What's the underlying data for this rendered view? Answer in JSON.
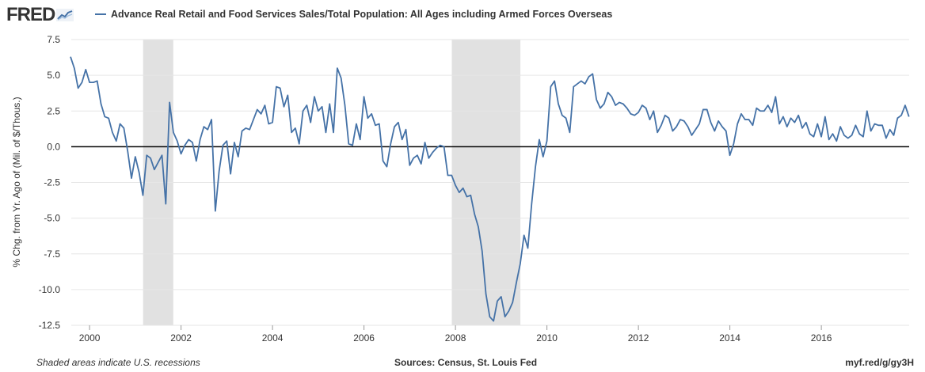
{
  "header": {
    "logo_text": "FRED",
    "logo_icon": "trend-line-icon",
    "legend_label": "Advance Real Retail and Food Services Sales/Total Population: All Ages including Armed Forces Overseas"
  },
  "colors": {
    "series": "#4572a7",
    "recession": "#e1e1e1",
    "grid": "#e6e6e6",
    "zero_line": "#000000"
  },
  "footer": {
    "left": "Shaded areas indicate U.S. recessions",
    "center": "Sources: Census, St. Louis Fed",
    "right": "myf.red/g/gy3H"
  },
  "chart_data": {
    "type": "line",
    "title": "",
    "xlabel": "",
    "ylabel": "% Chg. from Yr. Ago of (Mil. of $/Thous.)",
    "xlim": [
      1999.6,
      2017.92
    ],
    "ylim": [
      -12.5,
      7.5
    ],
    "x_ticks": [
      "2000",
      "2002",
      "2004",
      "2006",
      "2008",
      "2010",
      "2012",
      "2014",
      "2016"
    ],
    "x_tick_values": [
      2000,
      2002,
      2004,
      2006,
      2008,
      2010,
      2012,
      2014,
      2016
    ],
    "y_ticks": [
      "7.5",
      "5.0",
      "2.5",
      "0.0",
      "-2.5",
      "-5.0",
      "-7.5",
      "-10.0",
      "-12.5"
    ],
    "y_tick_values": [
      7.5,
      5.0,
      2.5,
      0.0,
      -2.5,
      -5.0,
      -7.5,
      -10.0,
      -12.5
    ],
    "grid": "horizontal",
    "zero_line": true,
    "recessions": [
      [
        2001.17,
        2001.83
      ],
      [
        2007.92,
        2009.42
      ]
    ],
    "series": [
      {
        "name": "Advance Real Retail and Food Services Sales/Total Population: All Ages including Armed Forces Overseas",
        "x_start": 1999.583,
        "x_step": 0.08333,
        "values": [
          6.3,
          5.5,
          4.1,
          4.5,
          5.4,
          4.5,
          4.5,
          4.6,
          3.0,
          2.1,
          2.0,
          1.0,
          0.4,
          1.6,
          1.3,
          -0.3,
          -2.2,
          -0.7,
          -1.8,
          -3.4,
          -0.6,
          -0.8,
          -1.6,
          -1.1,
          -0.6,
          -4.0,
          3.1,
          1.0,
          0.4,
          -0.5,
          0.1,
          0.5,
          0.3,
          -1.0,
          0.5,
          1.4,
          1.2,
          1.9,
          -4.5,
          -1.7,
          0.1,
          0.4,
          -1.9,
          0.3,
          -0.7,
          1.1,
          1.3,
          1.2,
          1.9,
          2.6,
          2.3,
          2.9,
          1.6,
          1.7,
          4.2,
          4.1,
          2.8,
          3.6,
          1.0,
          1.3,
          0.2,
          2.5,
          2.9,
          1.7,
          3.5,
          2.5,
          2.8,
          1.0,
          3.0,
          1.0,
          5.5,
          4.8,
          2.9,
          0.2,
          0.1,
          1.6,
          0.5,
          3.5,
          2.0,
          2.3,
          1.5,
          1.6,
          -1.0,
          -1.4,
          0.2,
          1.4,
          1.7,
          0.5,
          1.2,
          -1.3,
          -0.8,
          -0.6,
          -1.2,
          0.3,
          -0.8,
          -0.4,
          -0.1,
          0.1,
          0.0,
          -2.0,
          -2.0,
          -2.7,
          -3.2,
          -2.9,
          -3.5,
          -3.4,
          -4.7,
          -5.6,
          -7.3,
          -10.3,
          -11.9,
          -12.2,
          -10.8,
          -10.5,
          -11.9,
          -11.5,
          -10.9,
          -9.5,
          -8.2,
          -6.2,
          -7.1,
          -4.0,
          -1.4,
          0.5,
          -0.7,
          0.4,
          4.2,
          4.6,
          3.0,
          2.2,
          2.0,
          1.0,
          4.2,
          4.4,
          4.6,
          4.4,
          4.9,
          5.1,
          3.3,
          2.7,
          3.0,
          3.8,
          3.5,
          2.9,
          3.1,
          3.0,
          2.7,
          2.3,
          2.2,
          2.4,
          2.9,
          2.7,
          1.9,
          2.5,
          1.0,
          1.5,
          2.2,
          2.0,
          1.1,
          1.4,
          1.9,
          1.8,
          1.4,
          0.8,
          1.2,
          1.6,
          2.6,
          2.6,
          1.7,
          1.1,
          1.8,
          1.4,
          1.1,
          -0.6,
          0.2,
          1.6,
          2.3,
          1.9,
          1.9,
          1.5,
          2.7,
          2.5,
          2.5,
          2.9,
          2.4,
          3.5,
          1.6,
          2.1,
          1.4,
          2.0,
          1.7,
          2.2,
          1.3,
          1.7,
          0.9,
          0.7,
          1.6,
          0.7,
          2.1,
          0.5,
          0.9,
          0.4,
          1.4,
          0.8,
          0.6,
          0.8,
          1.5,
          0.9,
          0.7,
          2.5,
          1.1,
          1.6,
          1.5,
          1.5,
          0.6,
          1.2,
          0.8,
          2.0,
          2.2,
          2.9,
          2.1
        ]
      }
    ]
  }
}
